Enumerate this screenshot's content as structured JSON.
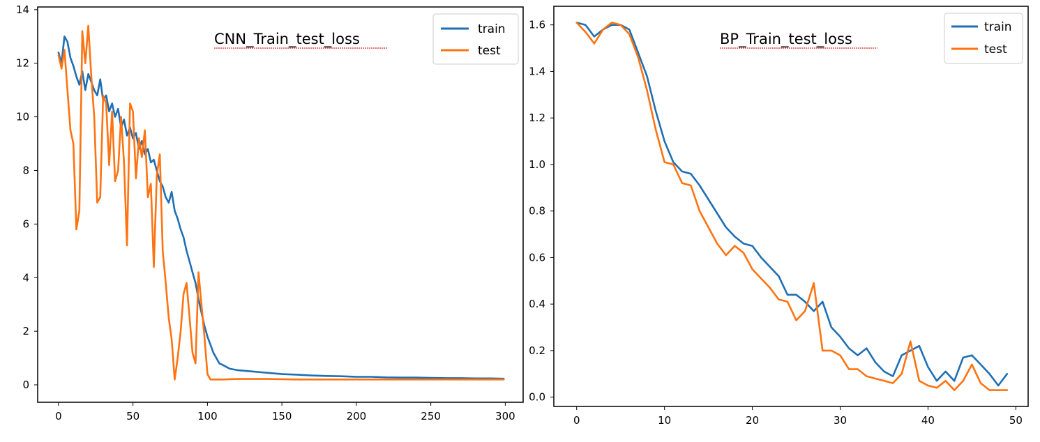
{
  "chart_data": [
    {
      "type": "line",
      "title": "CNN_Train_test_loss",
      "xlim": [
        -14,
        312
      ],
      "ylim": [
        -0.65,
        14.1
      ],
      "xticks": [
        0,
        50,
        100,
        150,
        200,
        250,
        300
      ],
      "yticks": [
        0,
        2,
        4,
        6,
        8,
        10,
        12,
        14
      ],
      "legend_position": "top-right",
      "series": [
        {
          "name": "train",
          "color": "#1f6fb4",
          "points": [
            [
              0,
              12.4
            ],
            [
              2,
              12.0
            ],
            [
              4,
              13.0
            ],
            [
              6,
              12.8
            ],
            [
              8,
              12.2
            ],
            [
              10,
              11.9
            ],
            [
              12,
              11.5
            ],
            [
              14,
              11.2
            ],
            [
              16,
              11.7
            ],
            [
              18,
              11.0
            ],
            [
              20,
              11.6
            ],
            [
              22,
              11.3
            ],
            [
              24,
              11.0
            ],
            [
              26,
              10.8
            ],
            [
              28,
              11.4
            ],
            [
              30,
              10.6
            ],
            [
              32,
              10.8
            ],
            [
              34,
              10.2
            ],
            [
              36,
              10.5
            ],
            [
              38,
              10.0
            ],
            [
              40,
              10.3
            ],
            [
              42,
              9.6
            ],
            [
              44,
              9.9
            ],
            [
              46,
              9.3
            ],
            [
              48,
              9.6
            ],
            [
              50,
              9.2
            ],
            [
              52,
              9.4
            ],
            [
              54,
              8.8
            ],
            [
              56,
              9.1
            ],
            [
              58,
              8.6
            ],
            [
              60,
              8.8
            ],
            [
              62,
              8.3
            ],
            [
              64,
              8.4
            ],
            [
              66,
              8.0
            ],
            [
              68,
              7.6
            ],
            [
              70,
              7.4
            ],
            [
              72,
              7.0
            ],
            [
              74,
              6.8
            ],
            [
              76,
              7.2
            ],
            [
              78,
              6.5
            ],
            [
              80,
              6.2
            ],
            [
              82,
              5.8
            ],
            [
              84,
              5.5
            ],
            [
              86,
              5.0
            ],
            [
              88,
              4.6
            ],
            [
              90,
              4.2
            ],
            [
              92,
              3.8
            ],
            [
              94,
              3.2
            ],
            [
              96,
              2.7
            ],
            [
              98,
              2.2
            ],
            [
              100,
              1.8
            ],
            [
              102,
              1.5
            ],
            [
              104,
              1.2
            ],
            [
              106,
              1.0
            ],
            [
              108,
              0.8
            ],
            [
              110,
              0.75
            ],
            [
              115,
              0.6
            ],
            [
              120,
              0.55
            ],
            [
              130,
              0.5
            ],
            [
              140,
              0.45
            ],
            [
              150,
              0.4
            ],
            [
              160,
              0.38
            ],
            [
              170,
              0.35
            ],
            [
              180,
              0.33
            ],
            [
              190,
              0.32
            ],
            [
              200,
              0.3
            ],
            [
              210,
              0.3
            ],
            [
              220,
              0.28
            ],
            [
              230,
              0.27
            ],
            [
              240,
              0.27
            ],
            [
              250,
              0.26
            ],
            [
              260,
              0.25
            ],
            [
              270,
              0.25
            ],
            [
              280,
              0.24
            ],
            [
              290,
              0.24
            ],
            [
              299,
              0.23
            ]
          ]
        },
        {
          "name": "test",
          "color": "#ff7311",
          "points": [
            [
              0,
              12.3
            ],
            [
              2,
              11.8
            ],
            [
              4,
              12.5
            ],
            [
              6,
              11.0
            ],
            [
              8,
              9.5
            ],
            [
              10,
              9.0
            ],
            [
              12,
              5.8
            ],
            [
              14,
              6.5
            ],
            [
              16,
              13.2
            ],
            [
              18,
              12.0
            ],
            [
              20,
              13.4
            ],
            [
              22,
              11.5
            ],
            [
              24,
              10.0
            ],
            [
              26,
              6.8
            ],
            [
              28,
              7.0
            ],
            [
              30,
              10.8
            ],
            [
              32,
              10.5
            ],
            [
              34,
              8.2
            ],
            [
              36,
              10.2
            ],
            [
              38,
              7.6
            ],
            [
              40,
              8.0
            ],
            [
              42,
              10.0
            ],
            [
              44,
              8.3
            ],
            [
              46,
              5.2
            ],
            [
              48,
              10.5
            ],
            [
              50,
              10.2
            ],
            [
              52,
              7.7
            ],
            [
              54,
              9.2
            ],
            [
              56,
              8.5
            ],
            [
              58,
              9.5
            ],
            [
              60,
              7.0
            ],
            [
              62,
              7.5
            ],
            [
              64,
              4.4
            ],
            [
              66,
              7.8
            ],
            [
              68,
              8.6
            ],
            [
              70,
              5.0
            ],
            [
              72,
              3.8
            ],
            [
              74,
              2.5
            ],
            [
              76,
              1.7
            ],
            [
              78,
              0.2
            ],
            [
              80,
              1.0
            ],
            [
              82,
              2.0
            ],
            [
              84,
              3.4
            ],
            [
              86,
              3.8
            ],
            [
              88,
              2.5
            ],
            [
              90,
              1.2
            ],
            [
              92,
              0.8
            ],
            [
              94,
              4.2
            ],
            [
              96,
              3.0
            ],
            [
              98,
              1.8
            ],
            [
              100,
              0.4
            ],
            [
              102,
              0.2
            ],
            [
              104,
              0.2
            ],
            [
              106,
              0.2
            ],
            [
              110,
              0.2
            ],
            [
              120,
              0.22
            ],
            [
              140,
              0.22
            ],
            [
              160,
              0.2
            ],
            [
              180,
              0.2
            ],
            [
              200,
              0.2
            ],
            [
              220,
              0.2
            ],
            [
              240,
              0.2
            ],
            [
              260,
              0.2
            ],
            [
              280,
              0.2
            ],
            [
              299,
              0.2
            ]
          ]
        }
      ]
    },
    {
      "type": "line",
      "title": "BP_Train_test_loss",
      "xlim": [
        -2.6,
        51.4
      ],
      "ylim": [
        -0.04,
        1.68
      ],
      "xticks": [
        0,
        10,
        20,
        30,
        40,
        50
      ],
      "yticks": [
        "0.0",
        "0.2",
        "0.4",
        "0.6",
        "0.8",
        "1.0",
        "1.2",
        "1.4",
        "1.6"
      ],
      "legend_position": "top-right",
      "series": [
        {
          "name": "train",
          "color": "#1f6fb4",
          "x": [
            0,
            1,
            2,
            3,
            4,
            5,
            6,
            7,
            8,
            9,
            10,
            11,
            12,
            13,
            14,
            15,
            16,
            17,
            18,
            19,
            20,
            21,
            22,
            23,
            24,
            25,
            26,
            27,
            28,
            29,
            30,
            31,
            32,
            33,
            34,
            35,
            36,
            37,
            38,
            39,
            40,
            41,
            42,
            43,
            44,
            45,
            46,
            47,
            48,
            49
          ],
          "y": [
            1.61,
            1.6,
            1.55,
            1.58,
            1.6,
            1.6,
            1.58,
            1.48,
            1.38,
            1.23,
            1.1,
            1.01,
            0.97,
            0.96,
            0.91,
            0.85,
            0.79,
            0.73,
            0.69,
            0.66,
            0.65,
            0.6,
            0.56,
            0.52,
            0.44,
            0.44,
            0.41,
            0.37,
            0.41,
            0.3,
            0.26,
            0.21,
            0.18,
            0.21,
            0.15,
            0.11,
            0.09,
            0.18,
            0.2,
            0.22,
            0.13,
            0.07,
            0.11,
            0.07,
            0.17,
            0.18,
            0.14,
            0.1,
            0.05,
            0.1
          ]
        },
        {
          "name": "test",
          "color": "#ff7311",
          "x": [
            0,
            1,
            2,
            3,
            4,
            5,
            6,
            7,
            8,
            9,
            10,
            11,
            12,
            13,
            14,
            15,
            16,
            17,
            18,
            19,
            20,
            21,
            22,
            23,
            24,
            25,
            26,
            27,
            28,
            29,
            30,
            31,
            32,
            33,
            34,
            35,
            36,
            37,
            38,
            39,
            40,
            41,
            42,
            43,
            44,
            45,
            46,
            47,
            48,
            49
          ],
          "y": [
            1.61,
            1.57,
            1.52,
            1.58,
            1.61,
            1.6,
            1.56,
            1.46,
            1.32,
            1.15,
            1.01,
            1.0,
            0.92,
            0.91,
            0.8,
            0.73,
            0.66,
            0.61,
            0.65,
            0.62,
            0.55,
            0.51,
            0.47,
            0.42,
            0.41,
            0.33,
            0.37,
            0.49,
            0.2,
            0.2,
            0.18,
            0.12,
            0.12,
            0.09,
            0.08,
            0.07,
            0.06,
            0.1,
            0.24,
            0.07,
            0.05,
            0.04,
            0.07,
            0.03,
            0.07,
            0.14,
            0.06,
            0.03,
            0.03,
            0.03
          ]
        }
      ]
    }
  ]
}
